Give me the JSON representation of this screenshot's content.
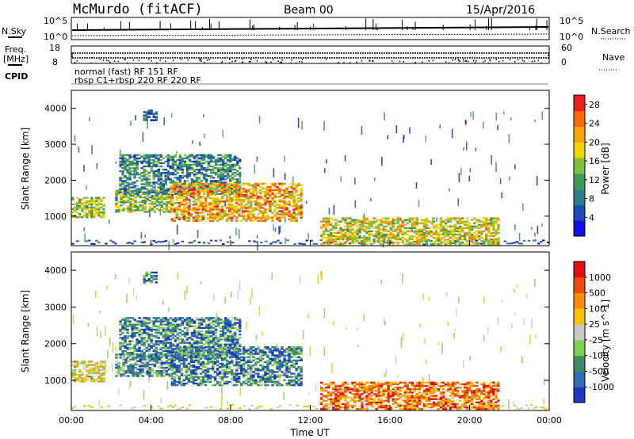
{
  "header": {
    "station": "McMurdo (fitACF)",
    "beam": "Beam 00",
    "date": "15/Apr/2016"
  },
  "aux_panels": {
    "nsky_label": "N.Sky",
    "nsearch_label": "N.Search",
    "noise_ticks_left": [
      "10^5",
      "10^0"
    ],
    "noise_ticks_right": [
      "10^5",
      "10^0"
    ],
    "freq_label": [
      "Freq.",
      "[MHz]"
    ],
    "freq_ticks": [
      "18",
      "8"
    ],
    "nave_label": "Nave",
    "nave_ticks": [
      "60",
      "0"
    ],
    "cpid_label": "CPID",
    "cpid_text": [
      "normal (fast) RF 151 RF",
      "rbsp C1+rbsp 220 RF 220 RF"
    ]
  },
  "chart_data": [
    {
      "type": "heatmap",
      "title": "",
      "xlabel": "Time UT",
      "ylabel": "Slant Range [km]",
      "x_ticks": [
        "00:00",
        "04:00",
        "08:00",
        "12:00",
        "16:00",
        "20:00",
        "00:00"
      ],
      "xlim": [
        0,
        24
      ],
      "y_ticks": [
        "1000",
        "2000",
        "3000",
        "4000"
      ],
      "ylim": [
        180,
        4500
      ],
      "colorbar": {
        "label": "Power [dB]",
        "ticks": [
          "4",
          "8",
          "12",
          "16",
          "20",
          "24",
          "28"
        ],
        "range": [
          0,
          30
        ],
        "colors": [
          "#1010e6",
          "#1f49b6",
          "#2f7c8a",
          "#3e9a5a",
          "#7dc042",
          "#f2d400",
          "#f5a400",
          "#ff6a00",
          "#e82020"
        ]
      },
      "features": [
        {
          "t0": 0.0,
          "t1": 1.6,
          "r0": 950,
          "r1": 1500,
          "level": 0.55
        },
        {
          "t0": 2.2,
          "t1": 5.0,
          "r0": 1100,
          "r1": 1700,
          "level": 0.5
        },
        {
          "t0": 2.4,
          "t1": 8.5,
          "r0": 1600,
          "r1": 2700,
          "level": 0.3
        },
        {
          "t0": 5.0,
          "t1": 11.5,
          "r0": 850,
          "r1": 1900,
          "level": 0.75
        },
        {
          "t0": 12.5,
          "t1": 21.5,
          "r0": 200,
          "r1": 950,
          "level": 0.6
        },
        {
          "t0": 3.6,
          "t1": 4.3,
          "r0": 3650,
          "r1": 3950,
          "level": 0.2
        }
      ]
    },
    {
      "type": "heatmap",
      "title": "",
      "xlabel": "Time UT",
      "ylabel": "Slant Range [km]",
      "x_ticks": [
        "00:00",
        "04:00",
        "08:00",
        "12:00",
        "16:00",
        "20:00",
        "00:00"
      ],
      "xlim": [
        0,
        24
      ],
      "y_ticks": [
        "1000",
        "2000",
        "3000",
        "4000"
      ],
      "ylim": [
        180,
        4500
      ],
      "colorbar": {
        "label": "Velocity [m s^-1]",
        "ticks": [
          "1000",
          "500",
          "100",
          "25",
          "-25",
          "-100",
          "-500",
          "-1000"
        ],
        "colors": [
          "#1f35c8",
          "#2f6cb4",
          "#3e8c62",
          "#7fd04e",
          "#c8c8c8",
          "#f7c200",
          "#ff8c00",
          "#f04a10",
          "#e01010"
        ]
      },
      "features": [
        {
          "t0": 0.0,
          "t1": 1.6,
          "r0": 950,
          "r1": 1500,
          "level": 0.55
        },
        {
          "t0": 2.2,
          "t1": 5.0,
          "r0": 1100,
          "r1": 1700,
          "level": 0.25
        },
        {
          "t0": 2.4,
          "t1": 8.5,
          "r0": 1600,
          "r1": 2700,
          "level": 0.2
        },
        {
          "t0": 5.0,
          "t1": 11.5,
          "r0": 850,
          "r1": 1900,
          "level": 0.2
        },
        {
          "t0": 12.5,
          "t1": 21.5,
          "r0": 200,
          "r1": 950,
          "level": 0.8
        },
        {
          "t0": 3.6,
          "t1": 4.3,
          "r0": 3650,
          "r1": 3950,
          "level": 0.2
        }
      ]
    }
  ]
}
